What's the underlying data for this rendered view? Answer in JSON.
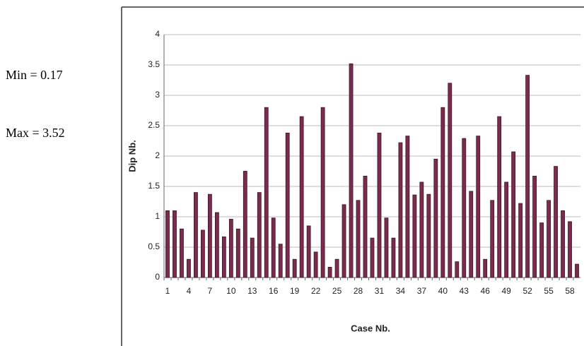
{
  "chart_data": {
    "type": "bar",
    "annotations": [
      "Min = 0.17",
      "Max = 3.52"
    ],
    "x_label": "Case Nb.",
    "y_label": "Dip Nb.",
    "categories": [
      1,
      null,
      null,
      4,
      null,
      null,
      7,
      null,
      null,
      10,
      null,
      null,
      13,
      null,
      null,
      16,
      null,
      null,
      19,
      null,
      null,
      22,
      null,
      null,
      25,
      null,
      null,
      28,
      null,
      null,
      31,
      null,
      null,
      34,
      null,
      null,
      37,
      null,
      null,
      40,
      null,
      null,
      43,
      null,
      null,
      46,
      null,
      null,
      49,
      null,
      null,
      52,
      null,
      null,
      55,
      null,
      null,
      58,
      null
    ],
    "values": [
      1.1,
      1.1,
      0.8,
      0.3,
      1.4,
      0.78,
      1.37,
      1.07,
      0.67,
      0.96,
      0.8,
      1.75,
      0.65,
      1.4,
      2.8,
      0.98,
      0.55,
      2.38,
      0.3,
      2.65,
      0.85,
      0.42,
      2.8,
      0.17,
      0.3,
      1.2,
      3.52,
      1.27,
      1.67,
      0.65,
      2.38,
      0.98,
      0.65,
      2.22,
      2.33,
      1.36,
      1.57,
      1.37,
      1.95,
      2.8,
      3.2,
      0.26,
      2.29,
      1.42,
      2.33,
      0.3,
      1.27,
      2.65,
      1.57,
      2.07,
      1.22,
      3.33,
      1.67,
      0.9,
      1.27,
      1.83,
      1.1,
      0.92,
      0.22
    ],
    "color": "#7b2c4e",
    "ylim": [
      0,
      4
    ],
    "yticks": [
      0,
      0.5,
      1,
      1.5,
      2,
      2.5,
      3,
      3.5,
      4
    ],
    "grid": true
  }
}
